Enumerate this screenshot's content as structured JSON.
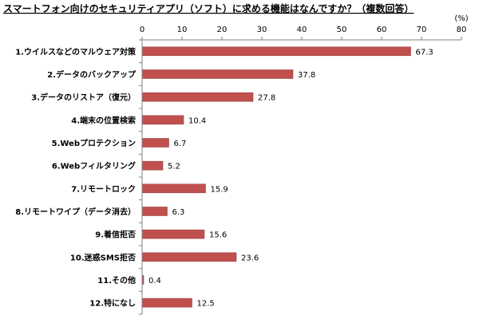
{
  "chart_data": {
    "type": "bar",
    "orientation": "horizontal",
    "title": "スマートフォン向けのセキュリティアプリ（ソフト）に求める機能はなんですか？（複数回答）",
    "unit": "(%)",
    "categories": [
      "1.ウイルスなどのマルウェア対策",
      "2.データのバックアップ",
      "3.データのリストア（復元）",
      "4.端末の位置検索",
      "5.Webプロテクション",
      "6.Webフィルタリング",
      "7.リモートロック",
      "8.リモートワイプ（データ消去）",
      "9.着信拒否",
      "10.迷惑SMS拒否",
      "11.その他",
      "12.特になし"
    ],
    "values": [
      67.3,
      37.8,
      27.8,
      10.4,
      6.7,
      5.2,
      15.9,
      6.3,
      15.6,
      23.6,
      0.4,
      12.5
    ],
    "value_labels": [
      "67.3",
      "37.8",
      "27.8",
      "10.4",
      "6.7",
      "5.2",
      "15.9",
      "6.3",
      "15.6",
      "23.6",
      "0.4",
      "12.5"
    ],
    "xlim": [
      0,
      80
    ],
    "ticks": [
      "0",
      "10",
      "20",
      "30",
      "40",
      "50",
      "60",
      "70",
      "80"
    ],
    "tick_values": [
      0,
      10,
      20,
      30,
      40,
      50,
      60,
      70,
      80
    ],
    "legend": "none",
    "grid": false,
    "colors": {
      "bar": "#c0504d",
      "bar_edge": "#8c3836",
      "axis": "#808080"
    }
  }
}
